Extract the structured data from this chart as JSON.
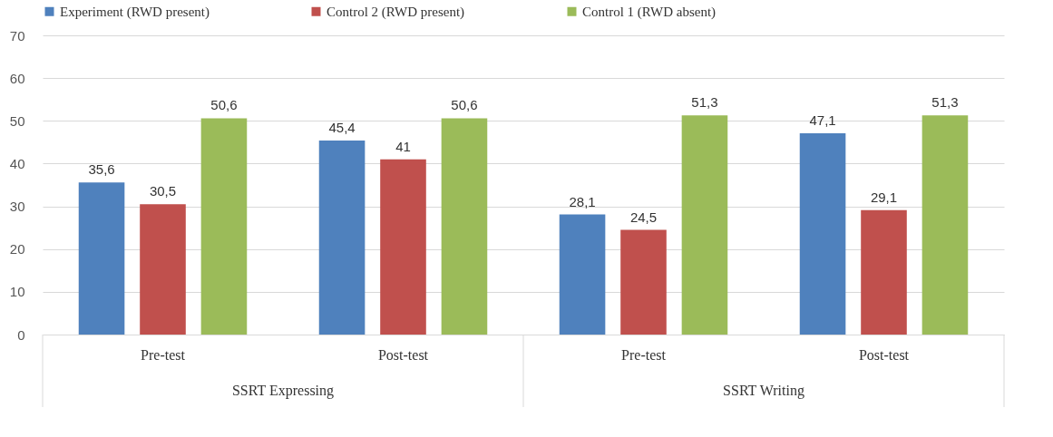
{
  "chart_data": {
    "type": "bar",
    "categories": [
      "Pre-test",
      "Post-test",
      "Pre-test",
      "Post-test"
    ],
    "annotations": [
      "SSRT Expressing",
      "SSRT Writing"
    ],
    "series": [
      {
        "name": "Experiment (RWD present)",
        "color": "#4f81bd",
        "values": [
          35.6,
          45.4,
          28.1,
          47.1
        ],
        "value_labels": [
          "35,6",
          "45,4",
          "28,1",
          "47,1"
        ]
      },
      {
        "name": "Control 2 (RWD present)",
        "color": "#c0504d",
        "values": [
          30.5,
          41,
          24.5,
          29.1
        ],
        "value_labels": [
          "30,5",
          "41",
          "24,5",
          "29,1"
        ]
      },
      {
        "name": "Control 1 (RWD absent)",
        "color": "#9bbb59",
        "values": [
          50.6,
          50.6,
          51.3,
          51.3
        ],
        "value_labels": [
          "50,6",
          "50,6",
          "51,3",
          "51,3"
        ]
      }
    ],
    "ylim": [
      0,
      70
    ],
    "yticks": [
      0,
      10,
      20,
      30,
      40,
      50,
      60,
      70
    ],
    "grid": "y",
    "legend": "top"
  }
}
